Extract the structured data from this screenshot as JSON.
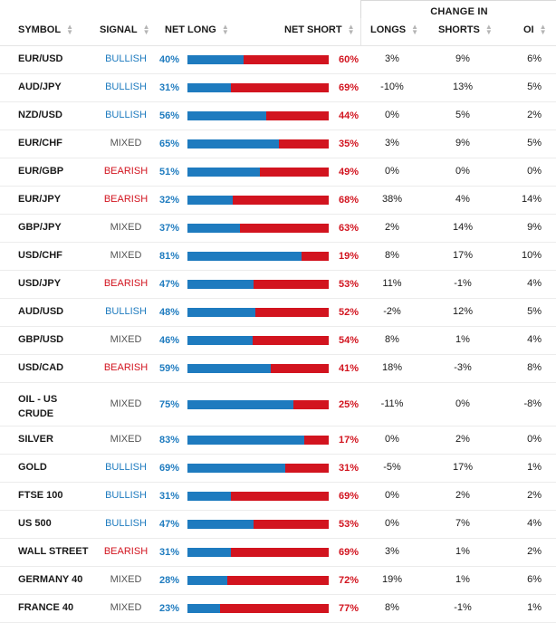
{
  "header": {
    "change_in": "CHANGE IN",
    "symbol": "SYMBOL",
    "signal": "SIGNAL",
    "net_long": "NET LONG",
    "net_short": "NET SHORT",
    "longs": "LONGS",
    "shorts": "SHORTS",
    "oi": "OI"
  },
  "colors": {
    "long_blue": "#1e7bbf",
    "short_red": "#d2141f"
  },
  "rows": [
    {
      "symbol": "EUR/USD",
      "signal": "BULLISH",
      "net_long": "40%",
      "net_short": "60%",
      "long_pct": 40,
      "longs": "3%",
      "shorts": "9%",
      "oi": "6%"
    },
    {
      "symbol": "AUD/JPY",
      "signal": "BULLISH",
      "net_long": "31%",
      "net_short": "69%",
      "long_pct": 31,
      "longs": "-10%",
      "shorts": "13%",
      "oi": "5%"
    },
    {
      "symbol": "NZD/USD",
      "signal": "BULLISH",
      "net_long": "56%",
      "net_short": "44%",
      "long_pct": 56,
      "longs": "0%",
      "shorts": "5%",
      "oi": "2%"
    },
    {
      "symbol": "EUR/CHF",
      "signal": "MIXED",
      "net_long": "65%",
      "net_short": "35%",
      "long_pct": 65,
      "longs": "3%",
      "shorts": "9%",
      "oi": "5%"
    },
    {
      "symbol": "EUR/GBP",
      "signal": "BEARISH",
      "net_long": "51%",
      "net_short": "49%",
      "long_pct": 51,
      "longs": "0%",
      "shorts": "0%",
      "oi": "0%"
    },
    {
      "symbol": "EUR/JPY",
      "signal": "BEARISH",
      "net_long": "32%",
      "net_short": "68%",
      "long_pct": 32,
      "longs": "38%",
      "shorts": "4%",
      "oi": "14%"
    },
    {
      "symbol": "GBP/JPY",
      "signal": "MIXED",
      "net_long": "37%",
      "net_short": "63%",
      "long_pct": 37,
      "longs": "2%",
      "shorts": "14%",
      "oi": "9%"
    },
    {
      "symbol": "USD/CHF",
      "signal": "MIXED",
      "net_long": "81%",
      "net_short": "19%",
      "long_pct": 81,
      "longs": "8%",
      "shorts": "17%",
      "oi": "10%"
    },
    {
      "symbol": "USD/JPY",
      "signal": "BEARISH",
      "net_long": "47%",
      "net_short": "53%",
      "long_pct": 47,
      "longs": "11%",
      "shorts": "-1%",
      "oi": "4%"
    },
    {
      "symbol": "AUD/USD",
      "signal": "BULLISH",
      "net_long": "48%",
      "net_short": "52%",
      "long_pct": 48,
      "longs": "-2%",
      "shorts": "12%",
      "oi": "5%"
    },
    {
      "symbol": "GBP/USD",
      "signal": "MIXED",
      "net_long": "46%",
      "net_short": "54%",
      "long_pct": 46,
      "longs": "8%",
      "shorts": "1%",
      "oi": "4%"
    },
    {
      "symbol": "USD/CAD",
      "signal": "BEARISH",
      "net_long": "59%",
      "net_short": "41%",
      "long_pct": 59,
      "longs": "18%",
      "shorts": "-3%",
      "oi": "8%"
    },
    {
      "symbol": "OIL - US CRUDE",
      "signal": "MIXED",
      "net_long": "75%",
      "net_short": "25%",
      "long_pct": 75,
      "longs": "-11%",
      "shorts": "0%",
      "oi": "-8%"
    },
    {
      "symbol": "SILVER",
      "signal": "MIXED",
      "net_long": "83%",
      "net_short": "17%",
      "long_pct": 83,
      "longs": "0%",
      "shorts": "2%",
      "oi": "0%"
    },
    {
      "symbol": "GOLD",
      "signal": "BULLISH",
      "net_long": "69%",
      "net_short": "31%",
      "long_pct": 69,
      "longs": "-5%",
      "shorts": "17%",
      "oi": "1%"
    },
    {
      "symbol": "FTSE 100",
      "signal": "BULLISH",
      "net_long": "31%",
      "net_short": "69%",
      "long_pct": 31,
      "longs": "0%",
      "shorts": "2%",
      "oi": "2%"
    },
    {
      "symbol": "US 500",
      "signal": "BULLISH",
      "net_long": "47%",
      "net_short": "53%",
      "long_pct": 47,
      "longs": "0%",
      "shorts": "7%",
      "oi": "4%"
    },
    {
      "symbol": "WALL STREET",
      "signal": "BEARISH",
      "net_long": "31%",
      "net_short": "69%",
      "long_pct": 31,
      "longs": "3%",
      "shorts": "1%",
      "oi": "2%"
    },
    {
      "symbol": "GERMANY 40",
      "signal": "MIXED",
      "net_long": "28%",
      "net_short": "72%",
      "long_pct": 28,
      "longs": "19%",
      "shorts": "1%",
      "oi": "6%"
    },
    {
      "symbol": "FRANCE 40",
      "signal": "MIXED",
      "net_long": "23%",
      "net_short": "77%",
      "long_pct": 23,
      "longs": "8%",
      "shorts": "-1%",
      "oi": "1%"
    }
  ]
}
